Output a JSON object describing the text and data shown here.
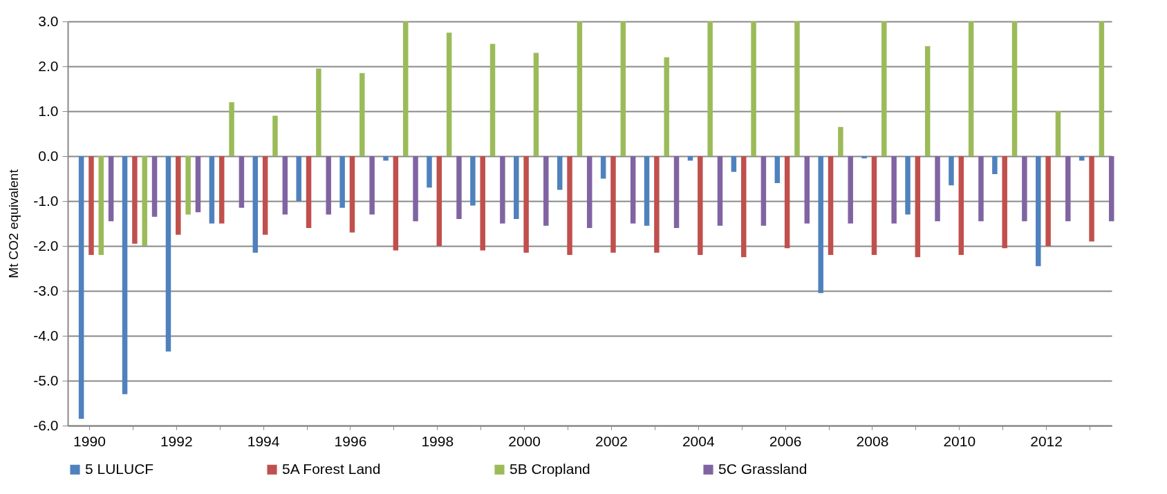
{
  "chart_data": {
    "type": "bar",
    "ylabel": "Mt CO2 equivalent",
    "categories": [
      "1990",
      null,
      "1992",
      null,
      "1994",
      null,
      "1996",
      null,
      "1998",
      null,
      "2000",
      null,
      "2002",
      null,
      "2004",
      null,
      "2006",
      null,
      "2008",
      null,
      "2010",
      null,
      "2012",
      null
    ],
    "series": [
      {
        "name": "5 LULUCF",
        "color": "#4f81bd",
        "values": [
          -5.85,
          -5.3,
          -4.35,
          -1.5,
          -2.15,
          -1.0,
          -1.15,
          -0.1,
          -0.7,
          -1.1,
          -1.4,
          -0.75,
          -0.5,
          -1.55,
          -0.1,
          -0.35,
          -0.6,
          -3.05,
          -0.05,
          -1.3,
          -0.65,
          -0.4,
          -2.45,
          -0.1
        ]
      },
      {
        "name": "5A Forest Land",
        "color": "#c0504d",
        "values": [
          -2.2,
          -1.95,
          -1.75,
          -1.5,
          -1.75,
          -1.6,
          -1.7,
          -2.1,
          -2.0,
          -2.1,
          -2.15,
          -2.2,
          -2.15,
          -2.15,
          -2.2,
          -2.25,
          -2.05,
          -2.2,
          -2.2,
          -2.25,
          -2.2,
          -2.05,
          -2.0,
          -1.9
        ]
      },
      {
        "name": "5B Cropland",
        "color": "#9bbb59",
        "values": [
          -2.2,
          -2.0,
          -1.3,
          1.2,
          0.9,
          1.95,
          1.85,
          3.0,
          2.75,
          2.5,
          2.3,
          3.0,
          3.0,
          2.2,
          3.0,
          3.0,
          3.0,
          0.65,
          3.0,
          2.45,
          3.0,
          3.0,
          1.0,
          3.0
        ]
      },
      {
        "name": "5C Grassland",
        "color": "#8064a2",
        "values": [
          -1.45,
          -1.35,
          -1.25,
          -1.15,
          -1.3,
          -1.3,
          -1.3,
          -1.45,
          -1.4,
          -1.5,
          -1.55,
          -1.6,
          -1.5,
          -1.6,
          -1.55,
          -1.55,
          -1.5,
          -1.5,
          -1.5,
          -1.45,
          -1.45,
          -1.45,
          -1.45,
          -1.45
        ]
      }
    ],
    "ylim": [
      -6,
      3
    ],
    "yticks": [
      {
        "value": 3,
        "label": "3.0"
      },
      {
        "value": 2,
        "label": "2.0"
      },
      {
        "value": 1,
        "label": "1.0"
      },
      {
        "value": 0,
        "label": "0.0"
      },
      {
        "value": -1,
        "label": "-1.0"
      },
      {
        "value": -2,
        "label": "-2.0"
      },
      {
        "value": -3,
        "label": "-3.0"
      },
      {
        "value": -4,
        "label": "-4.0"
      },
      {
        "value": -5,
        "label": "-5.0"
      },
      {
        "value": -6,
        "label": "-6.0"
      }
    ],
    "grid": "y",
    "legend": "bottom"
  }
}
